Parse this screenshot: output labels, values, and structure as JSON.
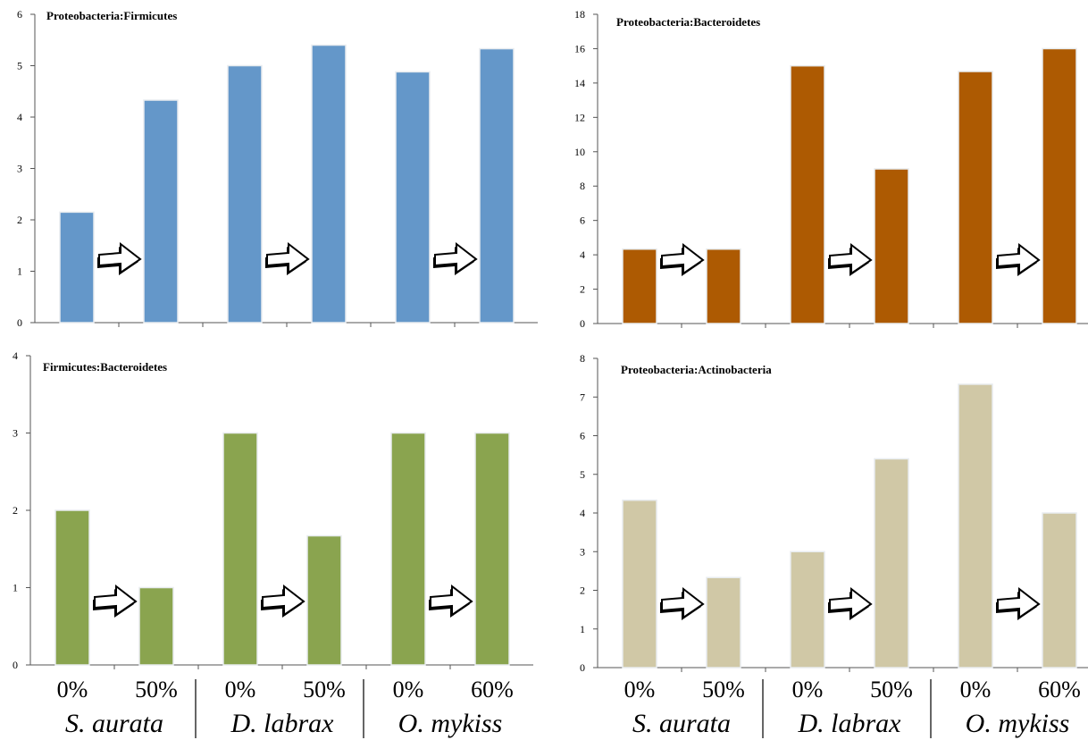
{
  "chart_data": [
    {
      "type": "bar",
      "title": "Proteobacteria:Firmicutes",
      "categories": [
        "S. aurata 0%",
        "S. aurata 50%",
        "D. labrax 0%",
        "D. labrax 50%",
        "O. mykiss 0%",
        "O. mykiss 60%"
      ],
      "values": [
        2.15,
        4.33,
        5.0,
        5.4,
        4.88,
        5.33
      ],
      "ylim": [
        0,
        6
      ],
      "yticks": [
        "0",
        "1",
        "2",
        "3",
        "4",
        "5",
        "6"
      ],
      "color": "#6497C9",
      "xlabel": "",
      "ylabel": ""
    },
    {
      "type": "bar",
      "title": "Proteobacteria:Bacteroidetes",
      "categories": [
        "S. aurata 0%",
        "S. aurata 50%",
        "D. labrax 0%",
        "D. labrax 50%",
        "O. mykiss 0%",
        "O. mykiss 60%"
      ],
      "values": [
        4.33,
        4.33,
        15.0,
        9.0,
        14.67,
        16.0
      ],
      "ylim": [
        0,
        18
      ],
      "yticks": [
        "0",
        "2",
        "4",
        "6",
        "8",
        "10",
        "12",
        "14",
        "16",
        "18"
      ],
      "color": "#AD5A02",
      "xlabel": "",
      "ylabel": ""
    },
    {
      "type": "bar",
      "title": "Firmicutes:Bacteroidetes",
      "categories": [
        "S. aurata 0%",
        "S. aurata 50%",
        "D. labrax 0%",
        "D. labrax 50%",
        "O. mykiss 0%",
        "O. mykiss 60%"
      ],
      "values": [
        2.0,
        1.0,
        3.0,
        1.67,
        3.0,
        3.0
      ],
      "ylim": [
        0,
        4
      ],
      "yticks": [
        "0",
        "1",
        "2",
        "3",
        "4"
      ],
      "color": "#8AA44F",
      "xlabel": "",
      "ylabel": ""
    },
    {
      "type": "bar",
      "title": "Proteobacteria:Actinobacteria",
      "categories": [
        "S. aurata 0%",
        "S. aurata 50%",
        "D. labrax 0%",
        "D. labrax 50%",
        "O. mykiss 0%",
        "O. mykiss 60%"
      ],
      "values": [
        4.33,
        2.33,
        3.0,
        5.4,
        7.33,
        4.0
      ],
      "ylim": [
        0,
        8
      ],
      "yticks": [
        "0",
        "1",
        "2",
        "3",
        "4",
        "5",
        "6",
        "7",
        "8"
      ],
      "color": "#D0C8A6",
      "xlabel": "",
      "ylabel": ""
    }
  ],
  "x_axis_labels": {
    "percents": [
      "0%",
      "50%",
      "0%",
      "50%",
      "0%",
      "60%"
    ],
    "species": [
      "S. aurata",
      "D. labrax",
      "O. mykiss"
    ]
  },
  "icons": {
    "group_arrow": "right-arrow-icon"
  }
}
